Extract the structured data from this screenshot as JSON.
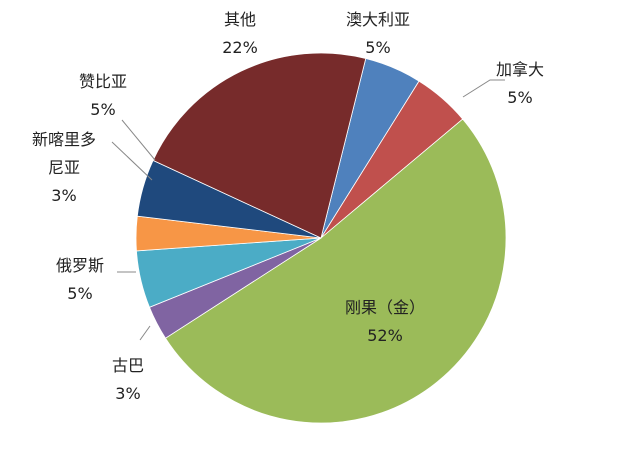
{
  "chart_data": {
    "type": "pie",
    "title": "",
    "slices": [
      {
        "label": "澳大利亚",
        "value": 5,
        "pct_label": "5%",
        "color": "#4F81BD"
      },
      {
        "label": "加拿大",
        "value": 5,
        "pct_label": "5%",
        "color": "#C0504D"
      },
      {
        "label": "刚果（金）",
        "value": 52,
        "pct_label": "52%",
        "color": "#9BBB59"
      },
      {
        "label": "古巴",
        "value": 3,
        "pct_label": "3%",
        "color": "#8064A2"
      },
      {
        "label": "俄罗斯",
        "value": 5,
        "pct_label": "5%",
        "color": "#4BACC6"
      },
      {
        "label": "新喀里多尼亚",
        "value": 3,
        "pct_label": "3%",
        "color": "#F79646"
      },
      {
        "label": "赞比亚",
        "value": 5,
        "pct_label": "5%",
        "color": "#1F497D"
      },
      {
        "label": "其他",
        "value": 22,
        "pct_label": "22%",
        "color": "#772B2B"
      }
    ],
    "legend": "none"
  }
}
